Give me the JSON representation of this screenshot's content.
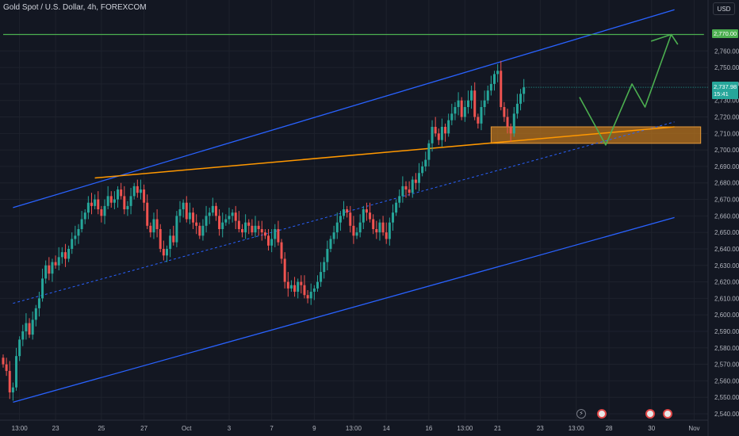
{
  "header": {
    "symbol_title": "Gold Spot / U.S. Dollar, 4h, FOREXCOM",
    "currency_button": "USD"
  },
  "colors": {
    "background": "#131722",
    "grid": "#1e222d",
    "up_candle": "#26a69a",
    "down_candle": "#ef5350",
    "channel": "#2962ff",
    "trendline": "#ff9800",
    "zone_fill": "#b8731e",
    "resistance": "#4caf50",
    "projection": "#4caf50"
  },
  "price_tags": {
    "resistance_label": "2,770.00",
    "current_price": "2,737.98",
    "countdown": "15:41"
  },
  "chart_data": {
    "type": "candlestick",
    "title": "Gold Spot / U.S. Dollar, 4h, FOREXCOM",
    "ylim": [
      2535,
      2790
    ],
    "y_ticks": [
      2540,
      2550,
      2560,
      2570,
      2580,
      2590,
      2600,
      2610,
      2620,
      2630,
      2640,
      2650,
      2660,
      2670,
      2680,
      2690,
      2700,
      2710,
      2720,
      2730,
      2740,
      2750,
      2760
    ],
    "y_tick_labels": [
      "2,540.00",
      "2,550.00",
      "2,560.00",
      "2,570.00",
      "2,580.00",
      "2,590.00",
      "2,600.00",
      "2,610.00",
      "2,620.00",
      "2,630.00",
      "2,640.00",
      "2,650.00",
      "2,660.00",
      "2,670.00",
      "2,680.00",
      "2,690.00",
      "2,700.00",
      "2,710.00",
      "2,720.00",
      "2,730.00",
      "2,740.00",
      "2,750.00",
      "2,760.00"
    ],
    "x_ticks": [
      {
        "label": "13:00",
        "bar": 5
      },
      {
        "label": "23",
        "bar": 16
      },
      {
        "label": "25",
        "bar": 30
      },
      {
        "label": "27",
        "bar": 43
      },
      {
        "label": "Oct",
        "bar": 56
      },
      {
        "label": "3",
        "bar": 69
      },
      {
        "label": "7",
        "bar": 82
      },
      {
        "label": "9",
        "bar": 95
      },
      {
        "label": "13:00",
        "bar": 107
      },
      {
        "label": "14",
        "bar": 117
      },
      {
        "label": "16",
        "bar": 130
      },
      {
        "label": "13:00",
        "bar": 141
      },
      {
        "label": "21",
        "bar": 151
      },
      {
        "label": "23",
        "bar": 164
      },
      {
        "label": "13:00",
        "bar": 175
      },
      {
        "label": "28",
        "bar": 185
      },
      {
        "label": "30",
        "bar": 198
      },
      {
        "label": "Nov",
        "bar": 211
      }
    ],
    "bar_count_total": 214,
    "closes": [
      2570,
      2566,
      2553,
      2556,
      2575,
      2585,
      2590,
      2595,
      2588,
      2597,
      2604,
      2610,
      2622,
      2630,
      2625,
      2632,
      2630,
      2635,
      2638,
      2634,
      2640,
      2646,
      2648,
      2652,
      2658,
      2662,
      2668,
      2666,
      2670,
      2664,
      2660,
      2666,
      2672,
      2668,
      2670,
      2676,
      2672,
      2664,
      2666,
      2672,
      2678,
      2674,
      2676,
      2668,
      2654,
      2650,
      2658,
      2652,
      2640,
      2636,
      2640,
      2648,
      2644,
      2660,
      2664,
      2668,
      2658,
      2662,
      2656,
      2654,
      2648,
      2654,
      2660,
      2662,
      2666,
      2660,
      2652,
      2656,
      2658,
      2660,
      2662,
      2657,
      2652,
      2650,
      2656,
      2654,
      2650,
      2654,
      2652,
      2650,
      2648,
      2642,
      2646,
      2652,
      2644,
      2634,
      2620,
      2616,
      2618,
      2614,
      2620,
      2618,
      2612,
      2610,
      2614,
      2616,
      2620,
      2626,
      2632,
      2640,
      2646,
      2650,
      2656,
      2660,
      2664,
      2662,
      2654,
      2648,
      2650,
      2656,
      2664,
      2662,
      2658,
      2652,
      2650,
      2656,
      2650,
      2646,
      2656,
      2662,
      2668,
      2672,
      2678,
      2676,
      2674,
      2682,
      2680,
      2686,
      2690,
      2694,
      2704,
      2714,
      2710,
      2706,
      2714,
      2710,
      2718,
      2722,
      2726,
      2730,
      2720,
      2726,
      2730,
      2736,
      2720,
      2716,
      2726,
      2730,
      2736,
      2740,
      2746,
      2748,
      2726,
      2720,
      2714,
      2710,
      2722,
      2728,
      2734,
      2737.98
    ],
    "series": [
      {
        "name": "",
        "role": "upper-channel",
        "points": [
          [
            3,
            2665
          ],
          [
            205,
            2785
          ]
        ]
      },
      {
        "name": "",
        "role": "lower-channel",
        "points": [
          [
            3,
            2547
          ],
          [
            205,
            2659
          ]
        ]
      },
      {
        "name": "",
        "role": "channel-midline",
        "points": [
          [
            3,
            2607
          ],
          [
            205,
            2717
          ]
        ]
      },
      {
        "name": "",
        "role": "rising-trendline",
        "points": [
          [
            28,
            2683
          ],
          [
            205,
            2714
          ]
        ]
      },
      {
        "name": "",
        "role": "resistance-level",
        "points": [
          [
            0,
            2770
          ],
          [
            214,
            2770
          ]
        ]
      },
      {
        "name": "",
        "role": "projected-path",
        "points": [
          [
            176,
            2732
          ],
          [
            184,
            2703
          ],
          [
            192,
            2740
          ],
          [
            196,
            2726
          ],
          [
            204,
            2770
          ],
          [
            198,
            2766
          ],
          [
            204,
            2770
          ],
          [
            206,
            2764
          ]
        ]
      }
    ],
    "zones": [
      {
        "role": "support-zone",
        "from_bar": 149,
        "to_bar": 213,
        "low": 2704,
        "high": 2714
      }
    ]
  },
  "events": {
    "bolt_icon": "lightning-icon",
    "flag_icon": "us-flag-icon"
  }
}
